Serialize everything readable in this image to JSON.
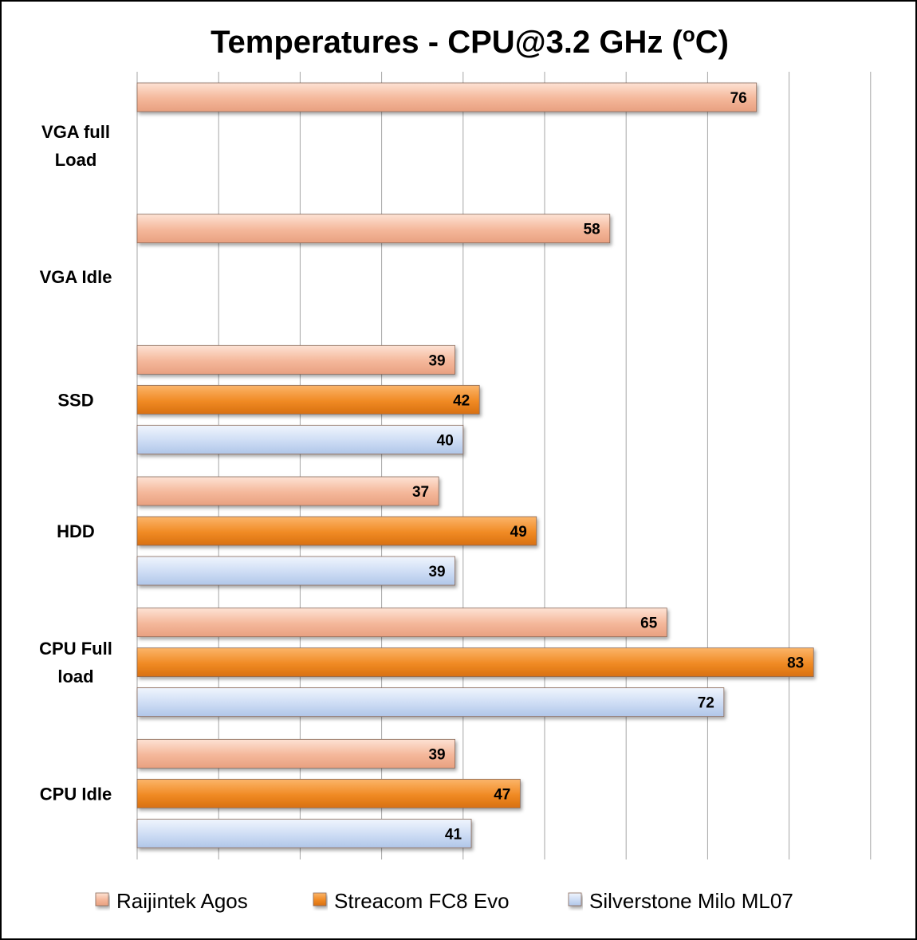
{
  "chart_data": {
    "type": "bar",
    "orientation": "horizontal",
    "title": "Temperatures - CPU@3.2 GHz (",
    "title_sup": "o",
    "title_suffix": "C)",
    "categories": [
      "VGA full Load",
      "VGA Idle",
      "SSD",
      "HDD",
      "CPU Full load",
      "CPU Idle"
    ],
    "category_lines": [
      [
        "VGA full",
        "Load"
      ],
      [
        "VGA Idle"
      ],
      [
        "SSD"
      ],
      [
        "HDD"
      ],
      [
        "CPU Full",
        "load"
      ],
      [
        "CPU Idle"
      ]
    ],
    "series": [
      {
        "name": "Raijintek Agos",
        "color": "#f4b79a",
        "values": [
          76,
          58,
          39,
          37,
          65,
          39
        ]
      },
      {
        "name": "Streacom FC8 Evo",
        "color": "#f08a24",
        "values": [
          null,
          null,
          42,
          49,
          83,
          47
        ]
      },
      {
        "name": "Silverstone Milo ML07",
        "color": "#cddcf4",
        "values": [
          null,
          null,
          40,
          39,
          72,
          41
        ]
      }
    ],
    "xlim": [
      0,
      90
    ],
    "grid": true,
    "legend_position": "bottom"
  }
}
